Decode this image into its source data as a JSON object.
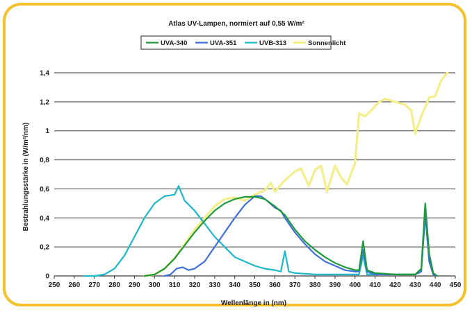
{
  "chart_data": {
    "type": "line",
    "title": "Atlas UV-Lampen, normiert auf 0,55 W/m²",
    "xlabel": "Wellenlänge in (nm)",
    "ylabel": "Bestrahlungsstärke in (W/m²/nm)",
    "xlim": [
      250,
      450
    ],
    "ylim": [
      0,
      1.4
    ],
    "x_ticks": [
      "250",
      "260",
      "270",
      "280",
      "290",
      "300",
      "310",
      "320",
      "330",
      "340",
      "350",
      "360",
      "370",
      "380",
      "390",
      "400",
      "410",
      "420",
      "430",
      "440",
      "450"
    ],
    "y_ticks": [
      "0",
      "0,2",
      "0,4",
      "0,6",
      "0,8",
      "1",
      "1,2",
      "1,4"
    ],
    "grid": "horizontal",
    "legend_position": "top",
    "series": [
      {
        "name": "UVA-340",
        "color": "#1e9a3c",
        "points": [
          [
            295,
            0
          ],
          [
            300,
            0.01
          ],
          [
            305,
            0.05
          ],
          [
            310,
            0.12
          ],
          [
            315,
            0.21
          ],
          [
            320,
            0.3
          ],
          [
            325,
            0.38
          ],
          [
            330,
            0.45
          ],
          [
            335,
            0.5
          ],
          [
            340,
            0.53
          ],
          [
            345,
            0.545
          ],
          [
            350,
            0.545
          ],
          [
            355,
            0.53
          ],
          [
            360,
            0.48
          ],
          [
            365,
            0.42
          ],
          [
            370,
            0.32
          ],
          [
            375,
            0.24
          ],
          [
            380,
            0.18
          ],
          [
            385,
            0.13
          ],
          [
            390,
            0.09
          ],
          [
            395,
            0.06
          ],
          [
            400,
            0.04
          ],
          [
            402,
            0.04
          ],
          [
            404,
            0.24
          ],
          [
            406,
            0.04
          ],
          [
            410,
            0.02
          ],
          [
            420,
            0.01
          ],
          [
            430,
            0.01
          ],
          [
            433,
            0.05
          ],
          [
            435,
            0.5
          ],
          [
            437,
            0.15
          ],
          [
            439,
            0.02
          ],
          [
            441,
            0
          ]
        ]
      },
      {
        "name": "UVA-351",
        "color": "#3f6fd8",
        "points": [
          [
            305,
            0
          ],
          [
            308,
            0.01
          ],
          [
            311,
            0.05
          ],
          [
            314,
            0.06
          ],
          [
            317,
            0.04
          ],
          [
            320,
            0.05
          ],
          [
            325,
            0.1
          ],
          [
            330,
            0.2
          ],
          [
            335,
            0.3
          ],
          [
            340,
            0.4
          ],
          [
            345,
            0.49
          ],
          [
            350,
            0.55
          ],
          [
            353,
            0.55
          ],
          [
            356,
            0.52
          ],
          [
            360,
            0.47
          ],
          [
            363,
            0.45
          ],
          [
            365,
            0.4
          ],
          [
            370,
            0.3
          ],
          [
            375,
            0.22
          ],
          [
            380,
            0.15
          ],
          [
            385,
            0.1
          ],
          [
            390,
            0.07
          ],
          [
            395,
            0.04
          ],
          [
            400,
            0.03
          ],
          [
            402,
            0.03
          ],
          [
            404,
            0.18
          ],
          [
            406,
            0.03
          ],
          [
            410,
            0.01
          ],
          [
            420,
            0.01
          ],
          [
            430,
            0.01
          ],
          [
            433,
            0.03
          ],
          [
            435,
            0.43
          ],
          [
            437,
            0.1
          ],
          [
            439,
            0.01
          ],
          [
            441,
            0
          ]
        ]
      },
      {
        "name": "UVB-313",
        "color": "#1cb8c8",
        "points": [
          [
            265,
            0
          ],
          [
            270,
            0
          ],
          [
            275,
            0.01
          ],
          [
            280,
            0.05
          ],
          [
            285,
            0.14
          ],
          [
            290,
            0.27
          ],
          [
            295,
            0.4
          ],
          [
            300,
            0.5
          ],
          [
            305,
            0.55
          ],
          [
            310,
            0.56
          ],
          [
            312,
            0.62
          ],
          [
            315,
            0.52
          ],
          [
            320,
            0.45
          ],
          [
            325,
            0.36
          ],
          [
            330,
            0.27
          ],
          [
            335,
            0.2
          ],
          [
            340,
            0.13
          ],
          [
            345,
            0.1
          ],
          [
            350,
            0.07
          ],
          [
            355,
            0.05
          ],
          [
            360,
            0.04
          ],
          [
            363,
            0.03
          ],
          [
            365,
            0.17
          ],
          [
            367,
            0.03
          ],
          [
            370,
            0.02
          ],
          [
            380,
            0.01
          ],
          [
            390,
            0.01
          ],
          [
            400,
            0.01
          ],
          [
            402,
            0.01
          ],
          [
            404,
            0.14
          ],
          [
            406,
            0.01
          ],
          [
            410,
            0.01
          ],
          [
            420,
            0.01
          ],
          [
            430,
            0.01
          ],
          [
            433,
            0.04
          ],
          [
            435,
            0.42
          ],
          [
            437,
            0.1
          ],
          [
            439,
            0.01
          ],
          [
            441,
            0
          ]
        ]
      },
      {
        "name": "Sonnenlicht",
        "color": "#f4ee8a",
        "points": [
          [
            295,
            0
          ],
          [
            300,
            0.01
          ],
          [
            305,
            0.05
          ],
          [
            310,
            0.12
          ],
          [
            315,
            0.22
          ],
          [
            320,
            0.32
          ],
          [
            325,
            0.4
          ],
          [
            330,
            0.48
          ],
          [
            335,
            0.53
          ],
          [
            340,
            0.54
          ],
          [
            345,
            0.52
          ],
          [
            350,
            0.56
          ],
          [
            355,
            0.59
          ],
          [
            358,
            0.64
          ],
          [
            360,
            0.58
          ],
          [
            365,
            0.66
          ],
          [
            370,
            0.72
          ],
          [
            373,
            0.74
          ],
          [
            377,
            0.62
          ],
          [
            380,
            0.73
          ],
          [
            383,
            0.76
          ],
          [
            386,
            0.58
          ],
          [
            390,
            0.76
          ],
          [
            393,
            0.68
          ],
          [
            396,
            0.63
          ],
          [
            400,
            0.78
          ],
          [
            402,
            1.12
          ],
          [
            405,
            1.1
          ],
          [
            408,
            1.14
          ],
          [
            412,
            1.2
          ],
          [
            415,
            1.22
          ],
          [
            420,
            1.2
          ],
          [
            425,
            1.18
          ],
          [
            428,
            1.14
          ],
          [
            430,
            0.98
          ],
          [
            433,
            1.1
          ],
          [
            437,
            1.23
          ],
          [
            440,
            1.24
          ],
          [
            443,
            1.35
          ],
          [
            446,
            1.4
          ]
        ]
      }
    ]
  }
}
